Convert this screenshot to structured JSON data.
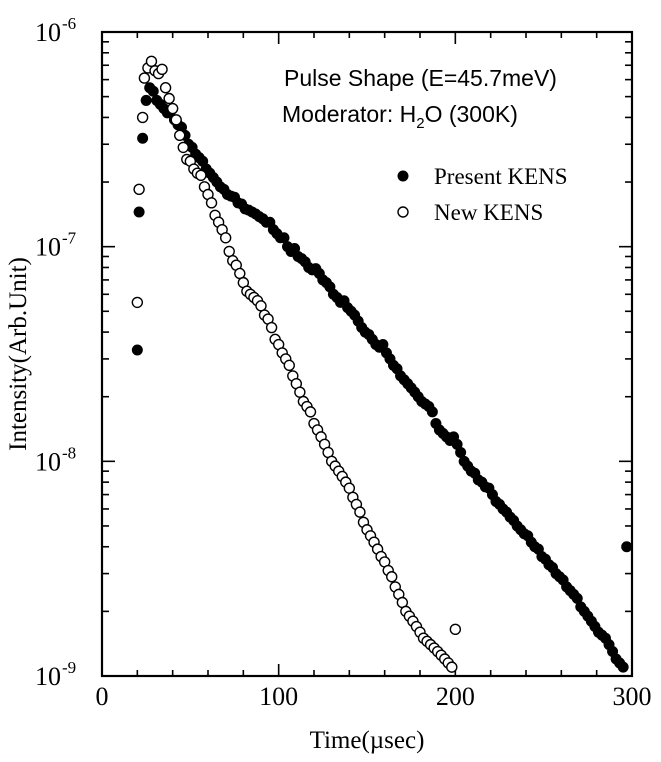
{
  "chart_data": {
    "type": "scatter",
    "scale_y": "log",
    "xlim": [
      0,
      300
    ],
    "ylim": [
      1e-09,
      1e-06
    ],
    "grid": false,
    "legend_position": "upper-right",
    "xlabel": "Time(µsec)",
    "ylabel": "Intensity(Arb.Unit)",
    "x_ticks": [
      {
        "value": 0,
        "label": "0"
      },
      {
        "value": 100,
        "label": "100"
      },
      {
        "value": 200,
        "label": "200"
      },
      {
        "value": 300,
        "label": "300"
      }
    ],
    "y_ticks": [
      {
        "value": 1e-09,
        "base": "10",
        "exp": "-9"
      },
      {
        "value": 1e-08,
        "base": "10",
        "exp": "-8"
      },
      {
        "value": 1e-07,
        "base": "10",
        "exp": "-7"
      },
      {
        "value": 1e-06,
        "base": "10",
        "exp": "-6"
      }
    ],
    "annotation": {
      "line1": "Pulse Shape (E=45.7meV)",
      "line2_prefix": "Moderator: H",
      "line2_sub": "2",
      "line2_suffix": "O (300K)"
    },
    "series": [
      {
        "name": "Present KENS",
        "marker": "filled-circle",
        "points": [
          [
            20,
            3.3e-08
          ],
          [
            21,
            1.45e-07
          ],
          [
            23,
            3.2e-07
          ],
          [
            25,
            4.8e-07
          ],
          [
            27,
            5.5e-07
          ],
          [
            29,
            5.3e-07
          ],
          [
            31,
            4.8e-07
          ],
          [
            33,
            4.6e-07
          ],
          [
            35,
            4.4e-07
          ],
          [
            37,
            4.2e-07
          ],
          [
            39,
            4.3e-07
          ],
          [
            41,
            3.9e-07
          ],
          [
            43,
            3.7e-07
          ],
          [
            45,
            3.6e-07
          ],
          [
            47,
            3.3e-07
          ],
          [
            49,
            3e-07
          ],
          [
            51,
            2.9e-07
          ],
          [
            53,
            2.7e-07
          ],
          [
            55,
            2.6e-07
          ],
          [
            57,
            2.5e-07
          ],
          [
            59,
            2.3e-07
          ],
          [
            61,
            2.2e-07
          ],
          [
            63,
            2.1e-07
          ],
          [
            65,
            2e-07
          ],
          [
            67,
            1.9e-07
          ],
          [
            69,
            1.85e-07
          ],
          [
            71,
            1.75e-07
          ],
          [
            73,
            1.72e-07
          ],
          [
            75,
            1.7e-07
          ],
          [
            77,
            1.6e-07
          ],
          [
            79,
            1.58e-07
          ],
          [
            81,
            1.5e-07
          ],
          [
            83,
            1.48e-07
          ],
          [
            85,
            1.45e-07
          ],
          [
            87,
            1.42e-07
          ],
          [
            89,
            1.38e-07
          ],
          [
            91,
            1.35e-07
          ],
          [
            93,
            1.3e-07
          ],
          [
            95,
            1.3e-07
          ],
          [
            97,
            1.2e-07
          ],
          [
            99,
            1.15e-07
          ],
          [
            101,
            1.1e-07
          ],
          [
            103,
            1.1e-07
          ],
          [
            105,
            1e-07
          ],
          [
            107,
            9.5e-08
          ],
          [
            109,
            9.8e-08
          ],
          [
            111,
            9e-08
          ],
          [
            113,
            8.8e-08
          ],
          [
            115,
            8.5e-08
          ],
          [
            117,
            8e-08
          ],
          [
            119,
            7.8e-08
          ],
          [
            121,
            7.9e-08
          ],
          [
            123,
            7.5e-08
          ],
          [
            125,
            7e-08
          ],
          [
            127,
            6.8e-08
          ],
          [
            129,
            6.5e-08
          ],
          [
            131,
            6e-08
          ],
          [
            133,
            5.8e-08
          ],
          [
            135,
            5.5e-08
          ],
          [
            137,
            5.6e-08
          ],
          [
            139,
            5.2e-08
          ],
          [
            141,
            5e-08
          ],
          [
            143,
            4.8e-08
          ],
          [
            145,
            4.5e-08
          ],
          [
            147,
            4.2e-08
          ],
          [
            149,
            4e-08
          ],
          [
            151,
            3.9e-08
          ],
          [
            153,
            3.7e-08
          ],
          [
            155,
            3.5e-08
          ],
          [
            157,
            3.4e-08
          ],
          [
            159,
            3.5e-08
          ],
          [
            161,
            3.2e-08
          ],
          [
            163,
            3e-08
          ],
          [
            165,
            2.8e-08
          ],
          [
            167,
            2.7e-08
          ],
          [
            169,
            2.5e-08
          ],
          [
            171,
            2.4e-08
          ],
          [
            173,
            2.3e-08
          ],
          [
            175,
            2.2e-08
          ],
          [
            177,
            2.1e-08
          ],
          [
            179,
            2e-08
          ],
          [
            181,
            1.9e-08
          ],
          [
            183,
            1.85e-08
          ],
          [
            185,
            1.8e-08
          ],
          [
            187,
            1.7e-08
          ],
          [
            189,
            1.5e-08
          ],
          [
            191,
            1.4e-08
          ],
          [
            193,
            1.35e-08
          ],
          [
            195,
            1.3e-08
          ],
          [
            197,
            1.25e-08
          ],
          [
            199,
            1.3e-08
          ],
          [
            201,
            1.2e-08
          ],
          [
            203,
            1.1e-08
          ],
          [
            205,
            1e-08
          ],
          [
            207,
            9.5e-09
          ],
          [
            209,
            9e-09
          ],
          [
            211,
            8.8e-09
          ],
          [
            213,
            8.2e-09
          ],
          [
            215,
            8e-09
          ],
          [
            217,
            7.6e-09
          ],
          [
            219,
            7.5e-09
          ],
          [
            221,
            7e-09
          ],
          [
            223,
            6.5e-09
          ],
          [
            225,
            6.3e-09
          ],
          [
            227,
            6e-09
          ],
          [
            229,
            5.8e-09
          ],
          [
            231,
            5.5e-09
          ],
          [
            233,
            5.3e-09
          ],
          [
            235,
            5e-09
          ],
          [
            237,
            4.8e-09
          ],
          [
            239,
            4.6e-09
          ],
          [
            241,
            4.5e-09
          ],
          [
            243,
            4.2e-09
          ],
          [
            245,
            4e-09
          ],
          [
            247,
            3.9e-09
          ],
          [
            249,
            3.6e-09
          ],
          [
            251,
            3.5e-09
          ],
          [
            253,
            3.3e-09
          ],
          [
            255,
            3.2e-09
          ],
          [
            257,
            3e-09
          ],
          [
            259,
            2.9e-09
          ],
          [
            261,
            2.8e-09
          ],
          [
            263,
            2.6e-09
          ],
          [
            265,
            2.5e-09
          ],
          [
            267,
            2.4e-09
          ],
          [
            269,
            2.3e-09
          ],
          [
            271,
            2.1e-09
          ],
          [
            273,
            2e-09
          ],
          [
            275,
            1.9e-09
          ],
          [
            277,
            1.8e-09
          ],
          [
            279,
            1.7e-09
          ],
          [
            281,
            1.6e-09
          ],
          [
            283,
            1.55e-09
          ],
          [
            285,
            1.5e-09
          ],
          [
            287,
            1.4e-09
          ],
          [
            289,
            1.3e-09
          ],
          [
            291,
            1.2e-09
          ],
          [
            293,
            1.15e-09
          ],
          [
            295,
            1.1e-09
          ],
          [
            297,
            4e-09
          ]
        ]
      },
      {
        "name": "New KENS",
        "marker": "open-circle",
        "points": [
          [
            20,
            5.5e-08
          ],
          [
            21,
            1.85e-07
          ],
          [
            23,
            4e-07
          ],
          [
            24,
            6.1e-07
          ],
          [
            26,
            6.8e-07
          ],
          [
            28,
            7.3e-07
          ],
          [
            30,
            6.6e-07
          ],
          [
            32,
            6.4e-07
          ],
          [
            34,
            6.7e-07
          ],
          [
            36,
            5.5e-07
          ],
          [
            38,
            4.9e-07
          ],
          [
            40,
            4.4e-07
          ],
          [
            42,
            3.9e-07
          ],
          [
            44,
            3.3e-07
          ],
          [
            46,
            2.9e-07
          ],
          [
            48,
            2.55e-07
          ],
          [
            50,
            2.5e-07
          ],
          [
            52,
            2.3e-07
          ],
          [
            54,
            2.2e-07
          ],
          [
            56,
            2.15e-07
          ],
          [
            58,
            1.9e-07
          ],
          [
            60,
            1.75e-07
          ],
          [
            62,
            1.6e-07
          ],
          [
            64,
            1.4e-07
          ],
          [
            66,
            1.3e-07
          ],
          [
            68,
            1.2e-07
          ],
          [
            70,
            1.1e-07
          ],
          [
            72,
            9.5e-08
          ],
          [
            74,
            8.6e-08
          ],
          [
            76,
            8.2e-08
          ],
          [
            78,
            7.5e-08
          ],
          [
            80,
            6.8e-08
          ],
          [
            82,
            6.2e-08
          ],
          [
            84,
            6e-08
          ],
          [
            86,
            5.8e-08
          ],
          [
            88,
            5.6e-08
          ],
          [
            90,
            5.3e-08
          ],
          [
            92,
            4.8e-08
          ],
          [
            94,
            4.6e-08
          ],
          [
            96,
            4.2e-08
          ],
          [
            98,
            3.7e-08
          ],
          [
            100,
            3.5e-08
          ],
          [
            102,
            3.2e-08
          ],
          [
            104,
            3e-08
          ],
          [
            106,
            2.8e-08
          ],
          [
            108,
            2.5e-08
          ],
          [
            110,
            2.3e-08
          ],
          [
            112,
            2.1e-08
          ],
          [
            114,
            1.9e-08
          ],
          [
            116,
            1.8e-08
          ],
          [
            118,
            1.7e-08
          ],
          [
            120,
            1.5e-08
          ],
          [
            122,
            1.4e-08
          ],
          [
            124,
            1.3e-08
          ],
          [
            126,
            1.2e-08
          ],
          [
            128,
            1.1e-08
          ],
          [
            130,
            1e-08
          ],
          [
            132,
            9.5e-09
          ],
          [
            134,
            9e-09
          ],
          [
            136,
            8.5e-09
          ],
          [
            138,
            8e-09
          ],
          [
            140,
            7.5e-09
          ],
          [
            142,
            6.8e-09
          ],
          [
            144,
            6.3e-09
          ],
          [
            146,
            5.8e-09
          ],
          [
            148,
            5.2e-09
          ],
          [
            150,
            4.8e-09
          ],
          [
            152,
            4.5e-09
          ],
          [
            154,
            4.2e-09
          ],
          [
            156,
            3.9e-09
          ],
          [
            158,
            3.6e-09
          ],
          [
            160,
            3.4e-09
          ],
          [
            162,
            3.1e-09
          ],
          [
            164,
            2.9e-09
          ],
          [
            166,
            2.6e-09
          ],
          [
            168,
            2.4e-09
          ],
          [
            170,
            2.2e-09
          ],
          [
            172,
            2e-09
          ],
          [
            174,
            1.9e-09
          ],
          [
            176,
            1.8e-09
          ],
          [
            178,
            1.7e-09
          ],
          [
            180,
            1.6e-09
          ],
          [
            182,
            1.5e-09
          ],
          [
            184,
            1.45e-09
          ],
          [
            186,
            1.4e-09
          ],
          [
            188,
            1.35e-09
          ],
          [
            190,
            1.3e-09
          ],
          [
            192,
            1.25e-09
          ],
          [
            194,
            1.2e-09
          ],
          [
            196,
            1.15e-09
          ],
          [
            198,
            1.1e-09
          ],
          [
            200,
            1.65e-09
          ]
        ]
      }
    ]
  }
}
